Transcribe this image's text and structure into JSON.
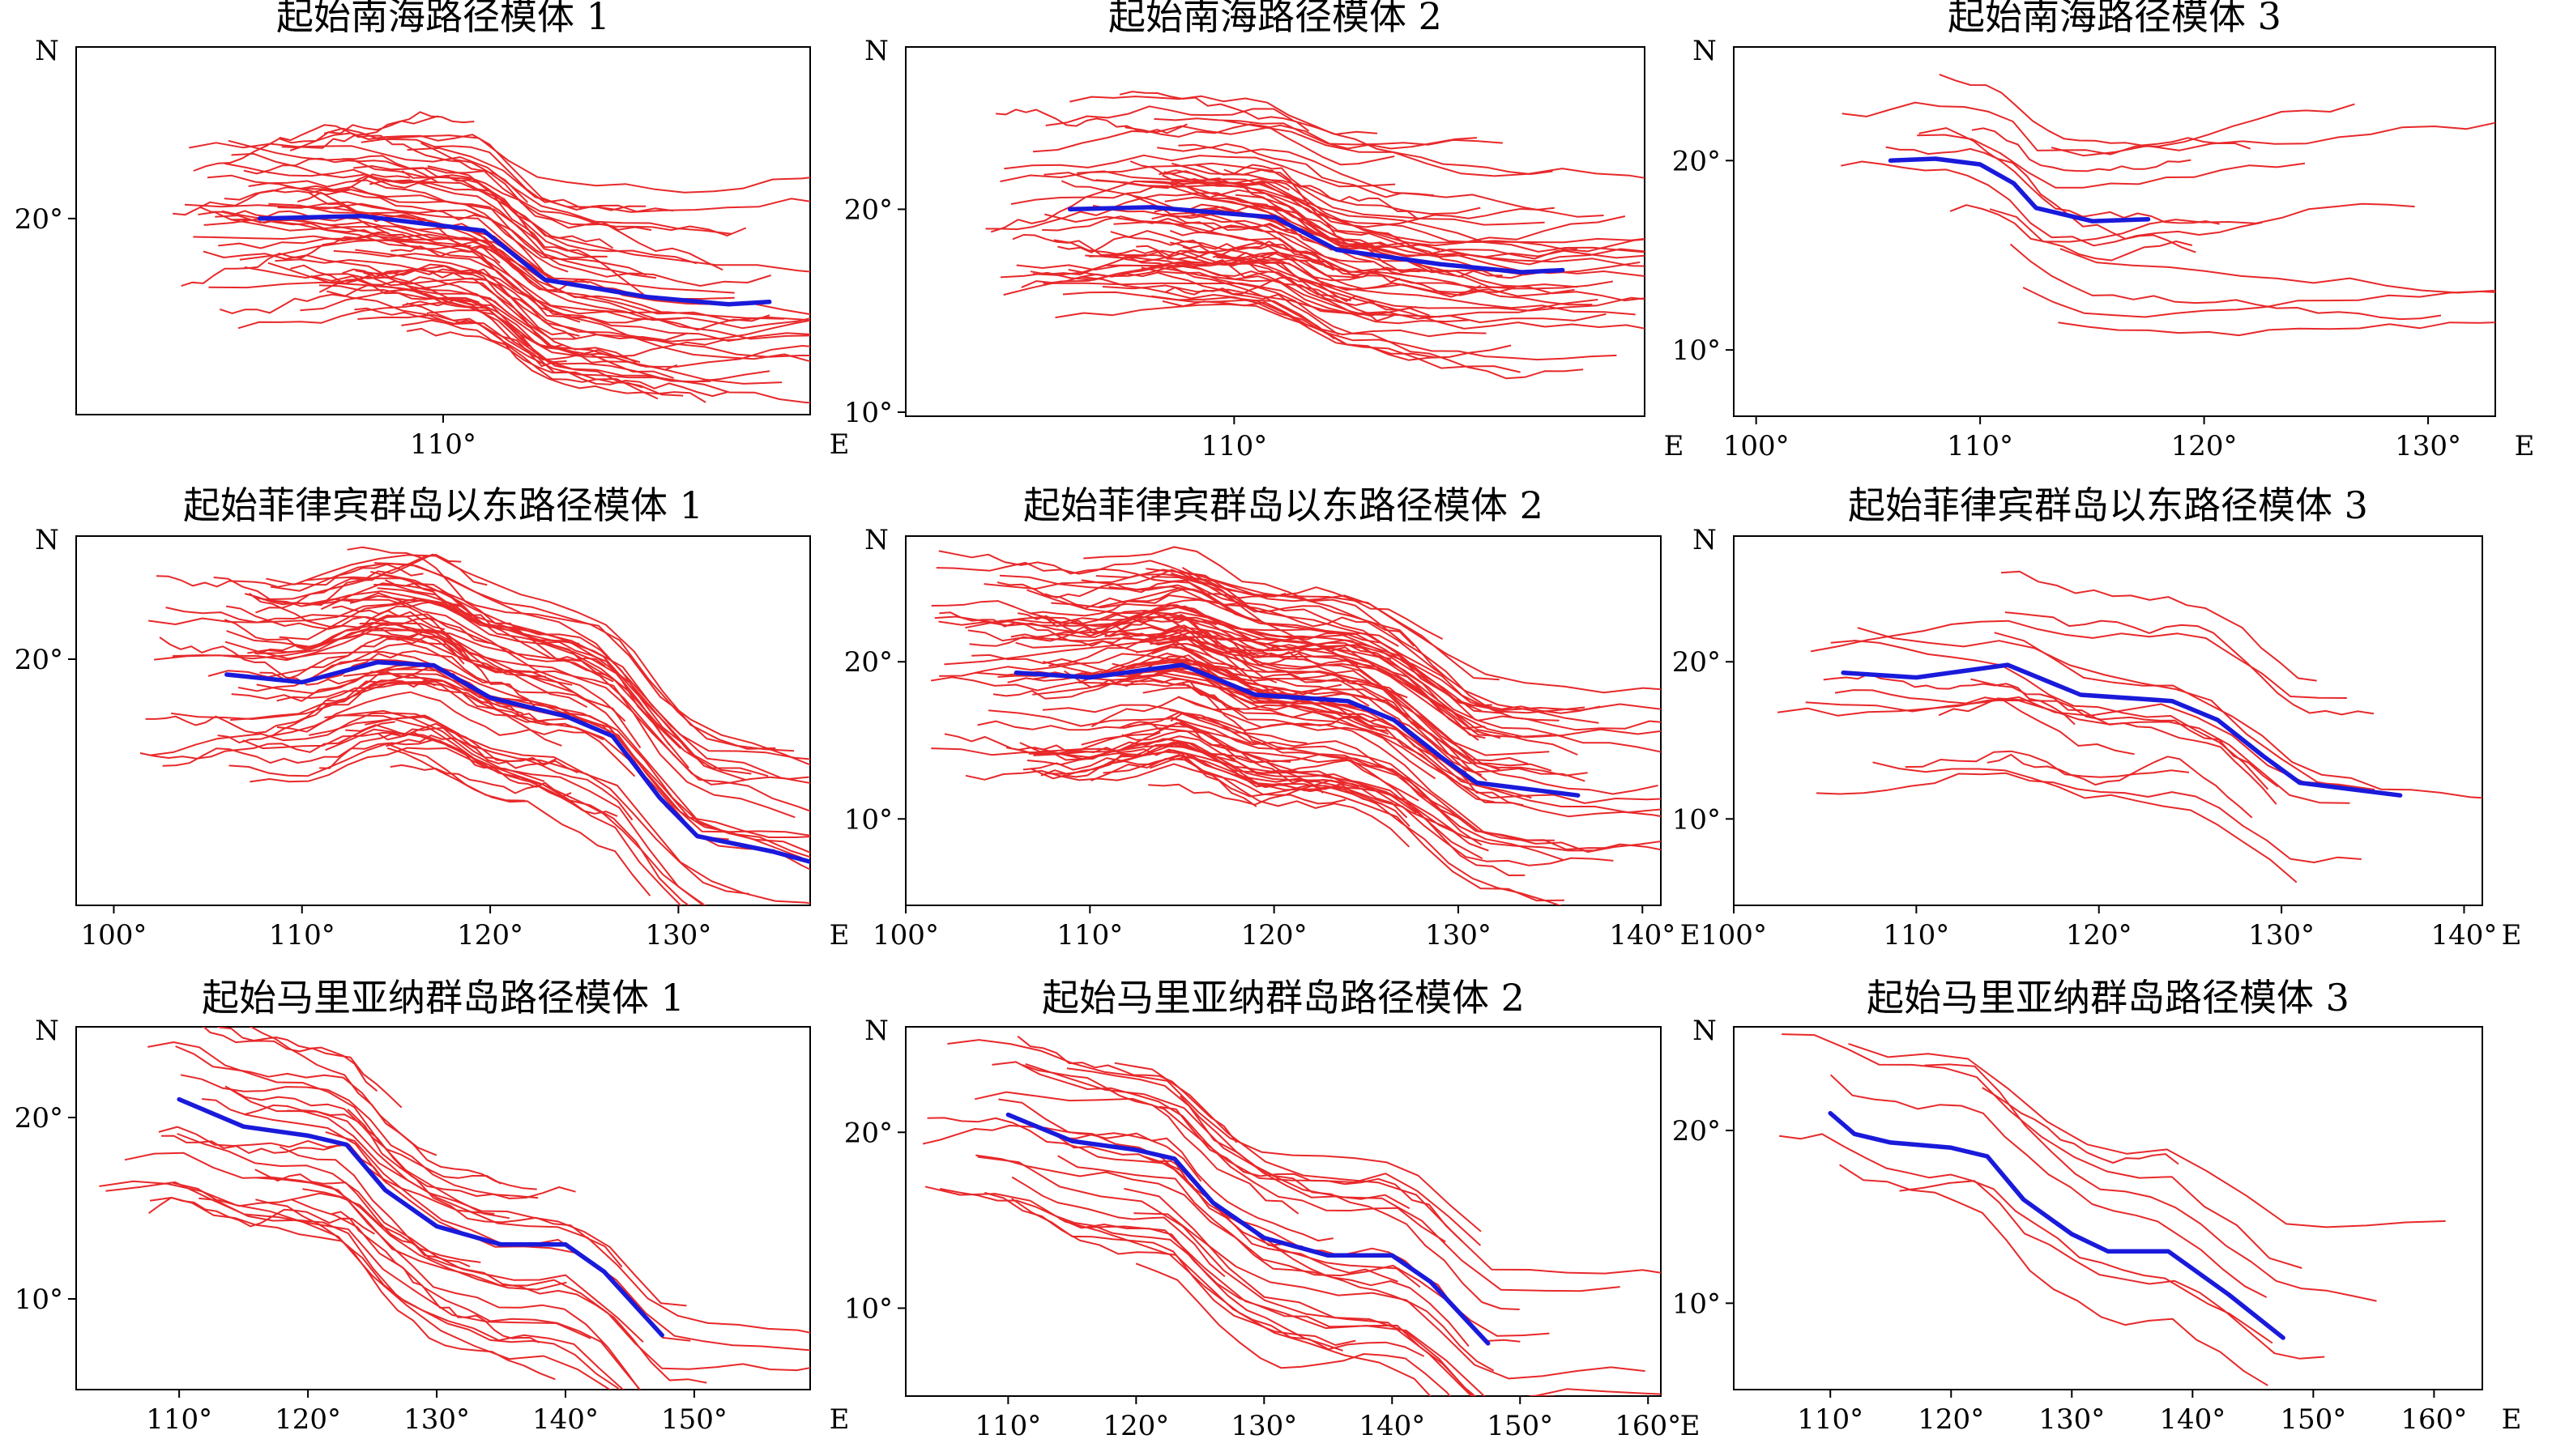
{
  "chart_data": [
    {
      "type": "line",
      "title": "起始南海路径模体 1",
      "x_direction": "E",
      "y_direction": "N",
      "xlim": [
        101,
        119
      ],
      "ylim": [
        12,
        27
      ],
      "xticks": [
        {
          "value": 110,
          "label": "110°"
        }
      ],
      "yticks": [
        {
          "value": 20,
          "label": "20°"
        }
      ],
      "track_color": "#e8282a",
      "mean_color": "#1a1adb",
      "track_count": 70,
      "mean_track": {
        "x": [
          105.5,
          108,
          111,
          112.5,
          115,
          117,
          118
        ],
        "y": [
          20,
          20.1,
          19.5,
          17.5,
          16.8,
          16.5,
          16.6
        ]
      }
    },
    {
      "type": "line",
      "title": "起始南海路径模体 2",
      "x_direction": "E",
      "y_direction": "N",
      "xlim": [
        102,
        120
      ],
      "ylim": [
        9.8,
        28
      ],
      "xticks": [
        {
          "value": 110,
          "label": "110°"
        }
      ],
      "yticks": [
        {
          "value": 10,
          "label": "10°"
        },
        {
          "value": 20,
          "label": "20°"
        }
      ],
      "track_color": "#e8282a",
      "mean_color": "#1a1adb",
      "track_count": 70,
      "mean_track": {
        "x": [
          106,
          108,
          111,
          112.5,
          115,
          117,
          118
        ],
        "y": [
          20,
          20.1,
          19.6,
          18,
          17.3,
          16.9,
          17
        ]
      }
    },
    {
      "type": "line",
      "title": "起始南海路径模体 3",
      "x_direction": "E",
      "y_direction": "N",
      "xlim": [
        99,
        133
      ],
      "ylim": [
        6.5,
        26
      ],
      "xticks": [
        {
          "value": 100,
          "label": "100°"
        },
        {
          "value": 110,
          "label": "110°"
        },
        {
          "value": 120,
          "label": "120°"
        },
        {
          "value": 130,
          "label": "130°"
        }
      ],
      "yticks": [
        {
          "value": 10,
          "label": "10°"
        },
        {
          "value": 20,
          "label": "20°"
        }
      ],
      "track_color": "#e8282a",
      "mean_color": "#1a1adb",
      "track_count": 14,
      "mean_track": {
        "x": [
          106,
          108,
          110,
          111.5,
          112.5,
          115,
          117.5
        ],
        "y": [
          20,
          20.1,
          19.8,
          18.8,
          17.5,
          16.8,
          16.9
        ]
      }
    },
    {
      "type": "line",
      "title": "起始菲律宾群岛以东路径模体 1",
      "x_direction": "E",
      "y_direction": "N",
      "xlim": [
        98,
        137
      ],
      "ylim": [
        4,
        28
      ],
      "xticks": [
        {
          "value": 100,
          "label": "100°"
        },
        {
          "value": 110,
          "label": "110°"
        },
        {
          "value": 120,
          "label": "120°"
        },
        {
          "value": 130,
          "label": "130°"
        }
      ],
      "yticks": [
        {
          "value": 20,
          "label": "20°"
        }
      ],
      "track_color": "#e8282a",
      "mean_color": "#1a1adb",
      "track_count": 70,
      "mean_track": {
        "x": [
          106,
          110,
          114,
          117,
          120,
          124,
          126.5,
          129,
          131,
          135,
          138
        ],
        "y": [
          19,
          18.5,
          19.8,
          19.6,
          17.5,
          16.3,
          15,
          11,
          8.5,
          7.5,
          6.5
        ]
      }
    },
    {
      "type": "line",
      "title": "起始菲律宾群岛以东路径模体 2",
      "x_direction": "E",
      "y_direction": "N",
      "xlim": [
        100,
        141
      ],
      "ylim": [
        4.5,
        28
      ],
      "xticks": [
        {
          "value": 100,
          "label": "100°"
        },
        {
          "value": 110,
          "label": "110°"
        },
        {
          "value": 120,
          "label": "120°"
        },
        {
          "value": 130,
          "label": "130°"
        },
        {
          "value": 140,
          "label": "140°"
        }
      ],
      "yticks": [
        {
          "value": 10,
          "label": "10°"
        },
        {
          "value": 20,
          "label": "20°"
        }
      ],
      "track_color": "#e8282a",
      "mean_color": "#1a1adb",
      "track_count": 100,
      "mean_track": {
        "x": [
          106,
          110,
          115,
          119,
          124,
          126.5,
          129,
          131,
          136.5
        ],
        "y": [
          19.3,
          19,
          19.8,
          17.9,
          17.5,
          16.3,
          14,
          12.3,
          11.5
        ]
      }
    },
    {
      "type": "line",
      "title": "起始菲律宾群岛以东路径模体 3",
      "x_direction": "E",
      "y_direction": "N",
      "xlim": [
        100,
        141
      ],
      "ylim": [
        4.5,
        28
      ],
      "xticks": [
        {
          "value": 100,
          "label": "100°"
        },
        {
          "value": 110,
          "label": "110°"
        },
        {
          "value": 120,
          "label": "120°"
        },
        {
          "value": 130,
          "label": "130°"
        },
        {
          "value": 140,
          "label": "140°"
        }
      ],
      "yticks": [
        {
          "value": 10,
          "label": "10°"
        },
        {
          "value": 20,
          "label": "20°"
        }
      ],
      "track_color": "#e8282a",
      "mean_color": "#1a1adb",
      "track_count": 16,
      "mean_track": {
        "x": [
          106,
          110,
          115,
          119,
          124,
          126.5,
          129,
          131,
          136.5
        ],
        "y": [
          19.3,
          19,
          19.8,
          17.9,
          17.5,
          16.3,
          14,
          12.3,
          11.5
        ]
      }
    },
    {
      "type": "line",
      "title": "起始马里亚纳群岛路径模体 1",
      "x_direction": "E",
      "y_direction": "N",
      "xlim": [
        102,
        159
      ],
      "ylim": [
        5,
        25
      ],
      "xticks": [
        {
          "value": 110,
          "label": "110°"
        },
        {
          "value": 120,
          "label": "120°"
        },
        {
          "value": 130,
          "label": "130°"
        },
        {
          "value": 140,
          "label": "140°"
        },
        {
          "value": 150,
          "label": "150°"
        }
      ],
      "yticks": [
        {
          "value": 10,
          "label": "10°"
        },
        {
          "value": 20,
          "label": "20°"
        }
      ],
      "track_color": "#e8282a",
      "mean_color": "#1a1adb",
      "track_count": 30,
      "mean_track": {
        "x": [
          110,
          115,
          120,
          123,
          126,
          130,
          135,
          140,
          143,
          147.5
        ],
        "y": [
          21,
          19.5,
          19,
          18.5,
          16,
          14,
          13,
          13,
          11.5,
          8
        ]
      }
    },
    {
      "type": "line",
      "title": "起始马里亚纳群岛路径模体 2",
      "x_direction": "E",
      "y_direction": "N",
      "xlim": [
        102,
        161
      ],
      "ylim": [
        5,
        26
      ],
      "xticks": [
        {
          "value": 110,
          "label": "110°"
        },
        {
          "value": 120,
          "label": "120°"
        },
        {
          "value": 130,
          "label": "130°"
        },
        {
          "value": 140,
          "label": "140°"
        },
        {
          "value": 150,
          "label": "150°"
        },
        {
          "value": 160,
          "label": "160°"
        }
      ],
      "yticks": [
        {
          "value": 10,
          "label": "10°"
        },
        {
          "value": 20,
          "label": "20°"
        }
      ],
      "track_color": "#e8282a",
      "mean_color": "#1a1adb",
      "track_count": 30,
      "mean_track": {
        "x": [
          110,
          115,
          120,
          123,
          126,
          130,
          135,
          140,
          143,
          147.5
        ],
        "y": [
          21,
          19.5,
          19,
          18.5,
          16,
          14,
          13,
          13,
          11.5,
          8
        ]
      }
    },
    {
      "type": "line",
      "title": "起始马里亚纳群岛路径模体 3",
      "x_direction": "E",
      "y_direction": "N",
      "xlim": [
        102,
        164
      ],
      "ylim": [
        5,
        26
      ],
      "xticks": [
        {
          "value": 110,
          "label": "110°"
        },
        {
          "value": 120,
          "label": "120°"
        },
        {
          "value": 130,
          "label": "130°"
        },
        {
          "value": 140,
          "label": "140°"
        },
        {
          "value": 150,
          "label": "150°"
        },
        {
          "value": 160,
          "label": "160°"
        }
      ],
      "yticks": [
        {
          "value": 10,
          "label": "10°"
        },
        {
          "value": 20,
          "label": "20°"
        }
      ],
      "track_color": "#e8282a",
      "mean_color": "#1a1adb",
      "track_count": 8,
      "mean_track": {
        "x": [
          110,
          112,
          115,
          120,
          123,
          126,
          130,
          133,
          138,
          143,
          147.5
        ],
        "y": [
          21,
          19.8,
          19.3,
          19,
          18.5,
          16,
          14,
          13,
          13,
          10.5,
          8
        ]
      }
    }
  ]
}
